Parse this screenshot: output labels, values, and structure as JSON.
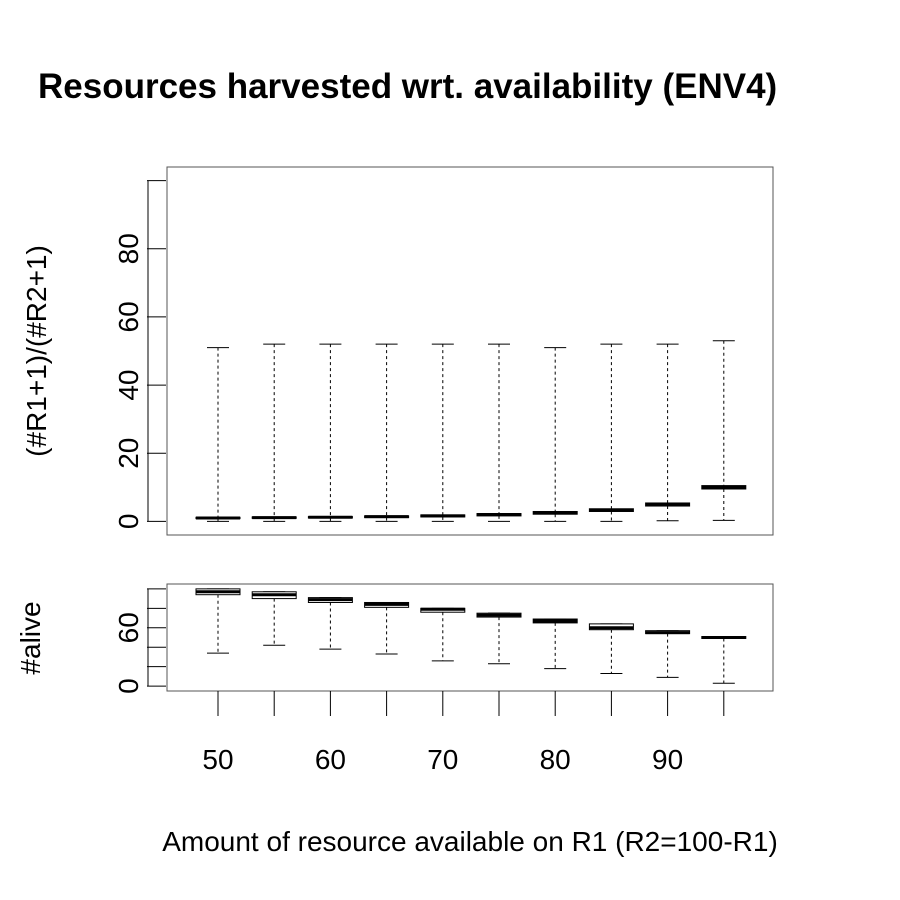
{
  "chart_data": {
    "type": "boxplot",
    "title": "Resources harvested wrt. availability (ENV4)",
    "xlabel": "Amount of resource available on R1 (R2=100-R1)",
    "categories": [
      50,
      55,
      60,
      65,
      70,
      75,
      80,
      85,
      90,
      95
    ],
    "x_tick_labels": [
      "50",
      "60",
      "70",
      "80",
      "90"
    ],
    "x_tick_values": [
      50,
      60,
      70,
      80,
      90
    ],
    "panels": [
      {
        "name": "ratio",
        "ylabel": "(#R1+1)/(#R2+1)",
        "ylim": [
          -4,
          104
        ],
        "y_ticks": [
          0,
          20,
          40,
          60,
          80,
          100
        ],
        "y_tick_labels": [
          "0",
          "20",
          "40",
          "60",
          "80",
          ""
        ],
        "boxes": [
          {
            "min": 0,
            "q1": 0.8,
            "median": 1.0,
            "q3": 1.2,
            "max": 51
          },
          {
            "min": 0,
            "q1": 0.9,
            "median": 1.1,
            "q3": 1.3,
            "max": 52
          },
          {
            "min": 0,
            "q1": 1.0,
            "median": 1.2,
            "q3": 1.4,
            "max": 52
          },
          {
            "min": 0,
            "q1": 1.1,
            "median": 1.4,
            "q3": 1.6,
            "max": 52
          },
          {
            "min": 0,
            "q1": 1.3,
            "median": 1.6,
            "q3": 1.9,
            "max": 52
          },
          {
            "min": 0,
            "q1": 1.6,
            "median": 2.0,
            "q3": 2.3,
            "max": 52
          },
          {
            "min": 0,
            "q1": 2.1,
            "median": 2.5,
            "q3": 2.9,
            "max": 51
          },
          {
            "min": 0,
            "q1": 2.9,
            "median": 3.3,
            "q3": 3.7,
            "max": 52
          },
          {
            "min": 0.2,
            "q1": 4.5,
            "median": 5.0,
            "q3": 5.4,
            "max": 52
          },
          {
            "min": 0.3,
            "q1": 9.5,
            "median": 10.0,
            "q3": 10.5,
            "max": 53
          }
        ]
      },
      {
        "name": "alive",
        "ylabel": "#alive",
        "ylim": [
          -5,
          105
        ],
        "y_ticks": [
          0,
          20,
          40,
          60,
          80,
          100
        ],
        "y_tick_labels": [
          "0",
          "",
          "",
          "60",
          "",
          ""
        ],
        "boxes": [
          {
            "min": 34,
            "q1": 94,
            "median": 97,
            "q3": 100,
            "max": 100
          },
          {
            "min": 42,
            "q1": 90,
            "median": 94,
            "q3": 97,
            "max": 97
          },
          {
            "min": 38,
            "q1": 86,
            "median": 89,
            "q3": 91,
            "max": 91
          },
          {
            "min": 33,
            "q1": 81,
            "median": 84,
            "q3": 86,
            "max": 86
          },
          {
            "min": 26,
            "q1": 76,
            "median": 79,
            "q3": 80,
            "max": 80
          },
          {
            "min": 23,
            "q1": 71,
            "median": 73,
            "q3": 75,
            "max": 75
          },
          {
            "min": 18,
            "q1": 65,
            "median": 67,
            "q3": 69,
            "max": 69
          },
          {
            "min": 13,
            "q1": 58,
            "median": 60,
            "q3": 64,
            "max": 64
          },
          {
            "min": 9,
            "q1": 54,
            "median": 55,
            "q3": 57,
            "max": 57
          },
          {
            "min": 3,
            "q1": 49,
            "median": 50,
            "q3": 51,
            "max": 51
          }
        ]
      }
    ],
    "grid": false,
    "legend": "none"
  }
}
